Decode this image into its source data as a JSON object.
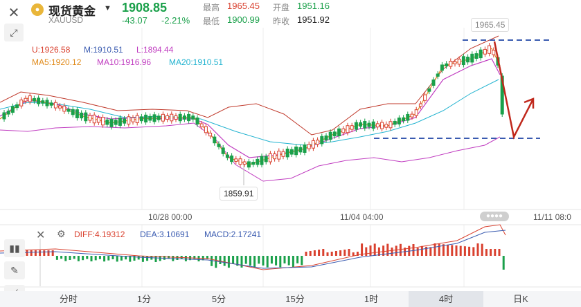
{
  "header": {
    "instrument_name": "现货黄金",
    "instrument_code": "XAUUSD",
    "last_price": "1908.85",
    "change": "-43.07",
    "change_percent": "-2.21%",
    "high_label": "最高",
    "high_value": "1965.45",
    "open_label": "开盘",
    "open_value": "1951.16",
    "low_label": "最低",
    "low_value": "1900.99",
    "prev_close_label": "昨收",
    "prev_close_value": "1951.92"
  },
  "indicators": {
    "boll_u": "U:1926.58",
    "boll_m": "M:1910.51",
    "boll_l": "L:1894.44",
    "ma5": "MA5:1920.12",
    "ma10": "MA10:1916.96",
    "ma20": "MA20:1910.51",
    "diff": "DIFF:4.19312",
    "dea": "DEA:3.10691",
    "macd": "MACD:2.17241"
  },
  "annotations": {
    "high_marker": "1965.45",
    "low_marker": "1859.91"
  },
  "time_axis": [
    "10/28 00:00",
    "11/04 04:00",
    "11/11 08:0"
  ],
  "tabs": [
    "分时",
    "1分",
    "5分",
    "15分",
    "1时",
    "4时",
    "日K"
  ],
  "active_tab": "4时",
  "colors": {
    "up": "#d9412f",
    "down": "#1aa04a",
    "ma5": "#e08a1a",
    "ma10": "#c03cc0",
    "ma20": "#22b3d0",
    "boll": "#c0392b",
    "annot_line": "#3a5bb0",
    "annot_arrow": "#c0281c"
  },
  "chart_data": {
    "type": "candlestick",
    "timeframe": "4时",
    "x": [
      "10/28 00:00",
      "11/04 04:00",
      "11/11 08:0"
    ],
    "price_markers": {
      "high": 1965.45,
      "low": 1859.91
    },
    "indicators": {
      "BOLL_U": 1926.58,
      "BOLL_M": 1910.51,
      "BOLL_L": 1894.44,
      "MA5": 1920.12,
      "MA10": 1916.96,
      "MA20": 1910.51,
      "DIFF": 4.19312,
      "DEA": 3.10691,
      "MACD": 2.17241
    }
  }
}
